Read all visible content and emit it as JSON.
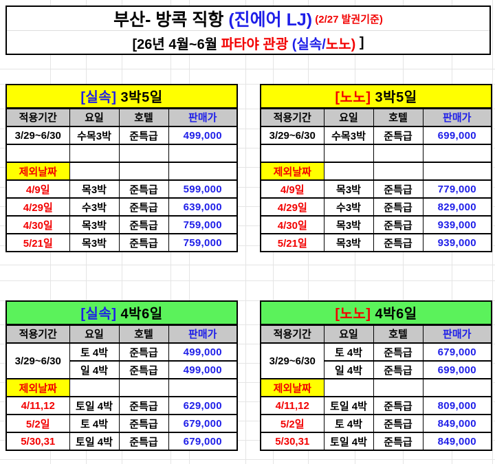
{
  "colors": {
    "yellow": "#ffff00",
    "green": "#5bf25b",
    "header_gray": "#c8c8c8",
    "blue": "#1e1ee8",
    "red": "#f20000",
    "black": "#000000"
  },
  "title": {
    "line1": [
      {
        "text": "부산- 방콕 직항 ",
        "color": "#000000",
        "small": false
      },
      {
        "text": "(진에어 LJ)",
        "color": "#1e1ee8",
        "small": false
      },
      {
        "text": " (2/27 발권기준)",
        "color": "#f20000",
        "small": true
      }
    ],
    "line2": [
      {
        "text": "[26년 4월~6월 ",
        "color": "#000000"
      },
      {
        "text": "파타야 관광 ",
        "color": "#f20000"
      },
      {
        "text": "(실속/",
        "color": "#1e1ee8"
      },
      {
        "text": "노노)",
        "color": "#f20000"
      },
      {
        "text": " ]",
        "color": "#000000"
      }
    ]
  },
  "tables": [
    {
      "id": "silsok-3bak5il",
      "variant": "top",
      "header": {
        "tag": "[실속]",
        "tag_color": "#1e1ee8",
        "title": " 3박5일",
        "bg": "#ffff00"
      },
      "columns": [
        "적용기간",
        "요일",
        "호텔",
        "판매가"
      ],
      "rows": [
        {
          "type": "data",
          "period": "3/29~6/30",
          "day": "수목3박",
          "hotel": "준특급",
          "price": "499,000"
        },
        {
          "type": "empty"
        },
        {
          "type": "label",
          "label": "제외날짜"
        },
        {
          "type": "excl",
          "period": "4/9일",
          "day": "목3박",
          "hotel": "준특급",
          "price": "599,000"
        },
        {
          "type": "excl",
          "period": "4/29일",
          "day": "수3박",
          "hotel": "준특급",
          "price": "639,000"
        },
        {
          "type": "excl",
          "period": "4/30일",
          "day": "목3박",
          "hotel": "준특급",
          "price": "759,000"
        },
        {
          "type": "excl",
          "period": "5/21일",
          "day": "목3박",
          "hotel": "준특급",
          "price": "759,000"
        }
      ]
    },
    {
      "id": "nono-3bak5il",
      "variant": "top",
      "header": {
        "tag": "[노노]",
        "tag_color": "#f20000",
        "title": " 3박5일",
        "bg": "#ffff00"
      },
      "columns": [
        "적용기간",
        "요일",
        "호텔",
        "판매가"
      ],
      "rows": [
        {
          "type": "data",
          "period": "3/29~6/30",
          "day": "수목3박",
          "hotel": "준특급",
          "price": "699,000"
        },
        {
          "type": "empty"
        },
        {
          "type": "label",
          "label": "제외날짜"
        },
        {
          "type": "excl",
          "period": "4/9일",
          "day": "목3박",
          "hotel": "준특급",
          "price": "779,000"
        },
        {
          "type": "excl",
          "period": "4/29일",
          "day": "수3박",
          "hotel": "준특급",
          "price": "829,000"
        },
        {
          "type": "excl",
          "period": "4/30일",
          "day": "목3박",
          "hotel": "준특급",
          "price": "939,000"
        },
        {
          "type": "excl",
          "period": "5/21일",
          "day": "목3박",
          "hotel": "준특급",
          "price": "939,000"
        }
      ]
    },
    {
      "id": "silsok-4bak6il",
      "variant": "bot",
      "header": {
        "tag": "[실속]",
        "tag_color": "#1e1ee8",
        "title": " 4박6일",
        "bg": "#5bf25b"
      },
      "columns": [
        "적용기간",
        "요일",
        "호텔",
        "판매가"
      ],
      "rows": [
        {
          "type": "merged",
          "period": "3/29~6/30",
          "subrows": [
            {
              "day": "토 4박",
              "hotel": "준특급",
              "price": "499,000"
            },
            {
              "day": "일 4박",
              "hotel": "준특급",
              "price": "499,000"
            }
          ]
        },
        {
          "type": "label",
          "label": "제외날짜"
        },
        {
          "type": "excl",
          "period": "4/11,12",
          "day": "토일 4박",
          "hotel": "준특급",
          "price": "629,000"
        },
        {
          "type": "excl",
          "period": "5/2일",
          "day": "토 4박",
          "hotel": "준특급",
          "price": "679,000"
        },
        {
          "type": "excl",
          "period": "5/30,31",
          "day": "토일 4박",
          "hotel": "준특급",
          "price": "679,000"
        }
      ]
    },
    {
      "id": "nono-4bak6il",
      "variant": "bot",
      "header": {
        "tag": "[노노]",
        "tag_color": "#f20000",
        "title": " 4박6일",
        "bg": "#5bf25b"
      },
      "columns": [
        "적용기간",
        "요일",
        "호텔",
        "판매가"
      ],
      "rows": [
        {
          "type": "merged",
          "period": "3/29~6/30",
          "subrows": [
            {
              "day": "토 4박",
              "hotel": "준특급",
              "price": "679,000"
            },
            {
              "day": "일 4박",
              "hotel": "준특급",
              "price": "699,000"
            }
          ]
        },
        {
          "type": "label",
          "label": "제외날짜"
        },
        {
          "type": "excl",
          "period": "4/11,12",
          "day": "토일 4박",
          "hotel": "준특급",
          "price": "809,000"
        },
        {
          "type": "excl",
          "period": "5/2일",
          "day": "토 4박",
          "hotel": "준특급",
          "price": "849,000"
        },
        {
          "type": "excl",
          "period": "5/30,31",
          "day": "토일 4박",
          "hotel": "준특급",
          "price": "849,000"
        }
      ]
    }
  ]
}
